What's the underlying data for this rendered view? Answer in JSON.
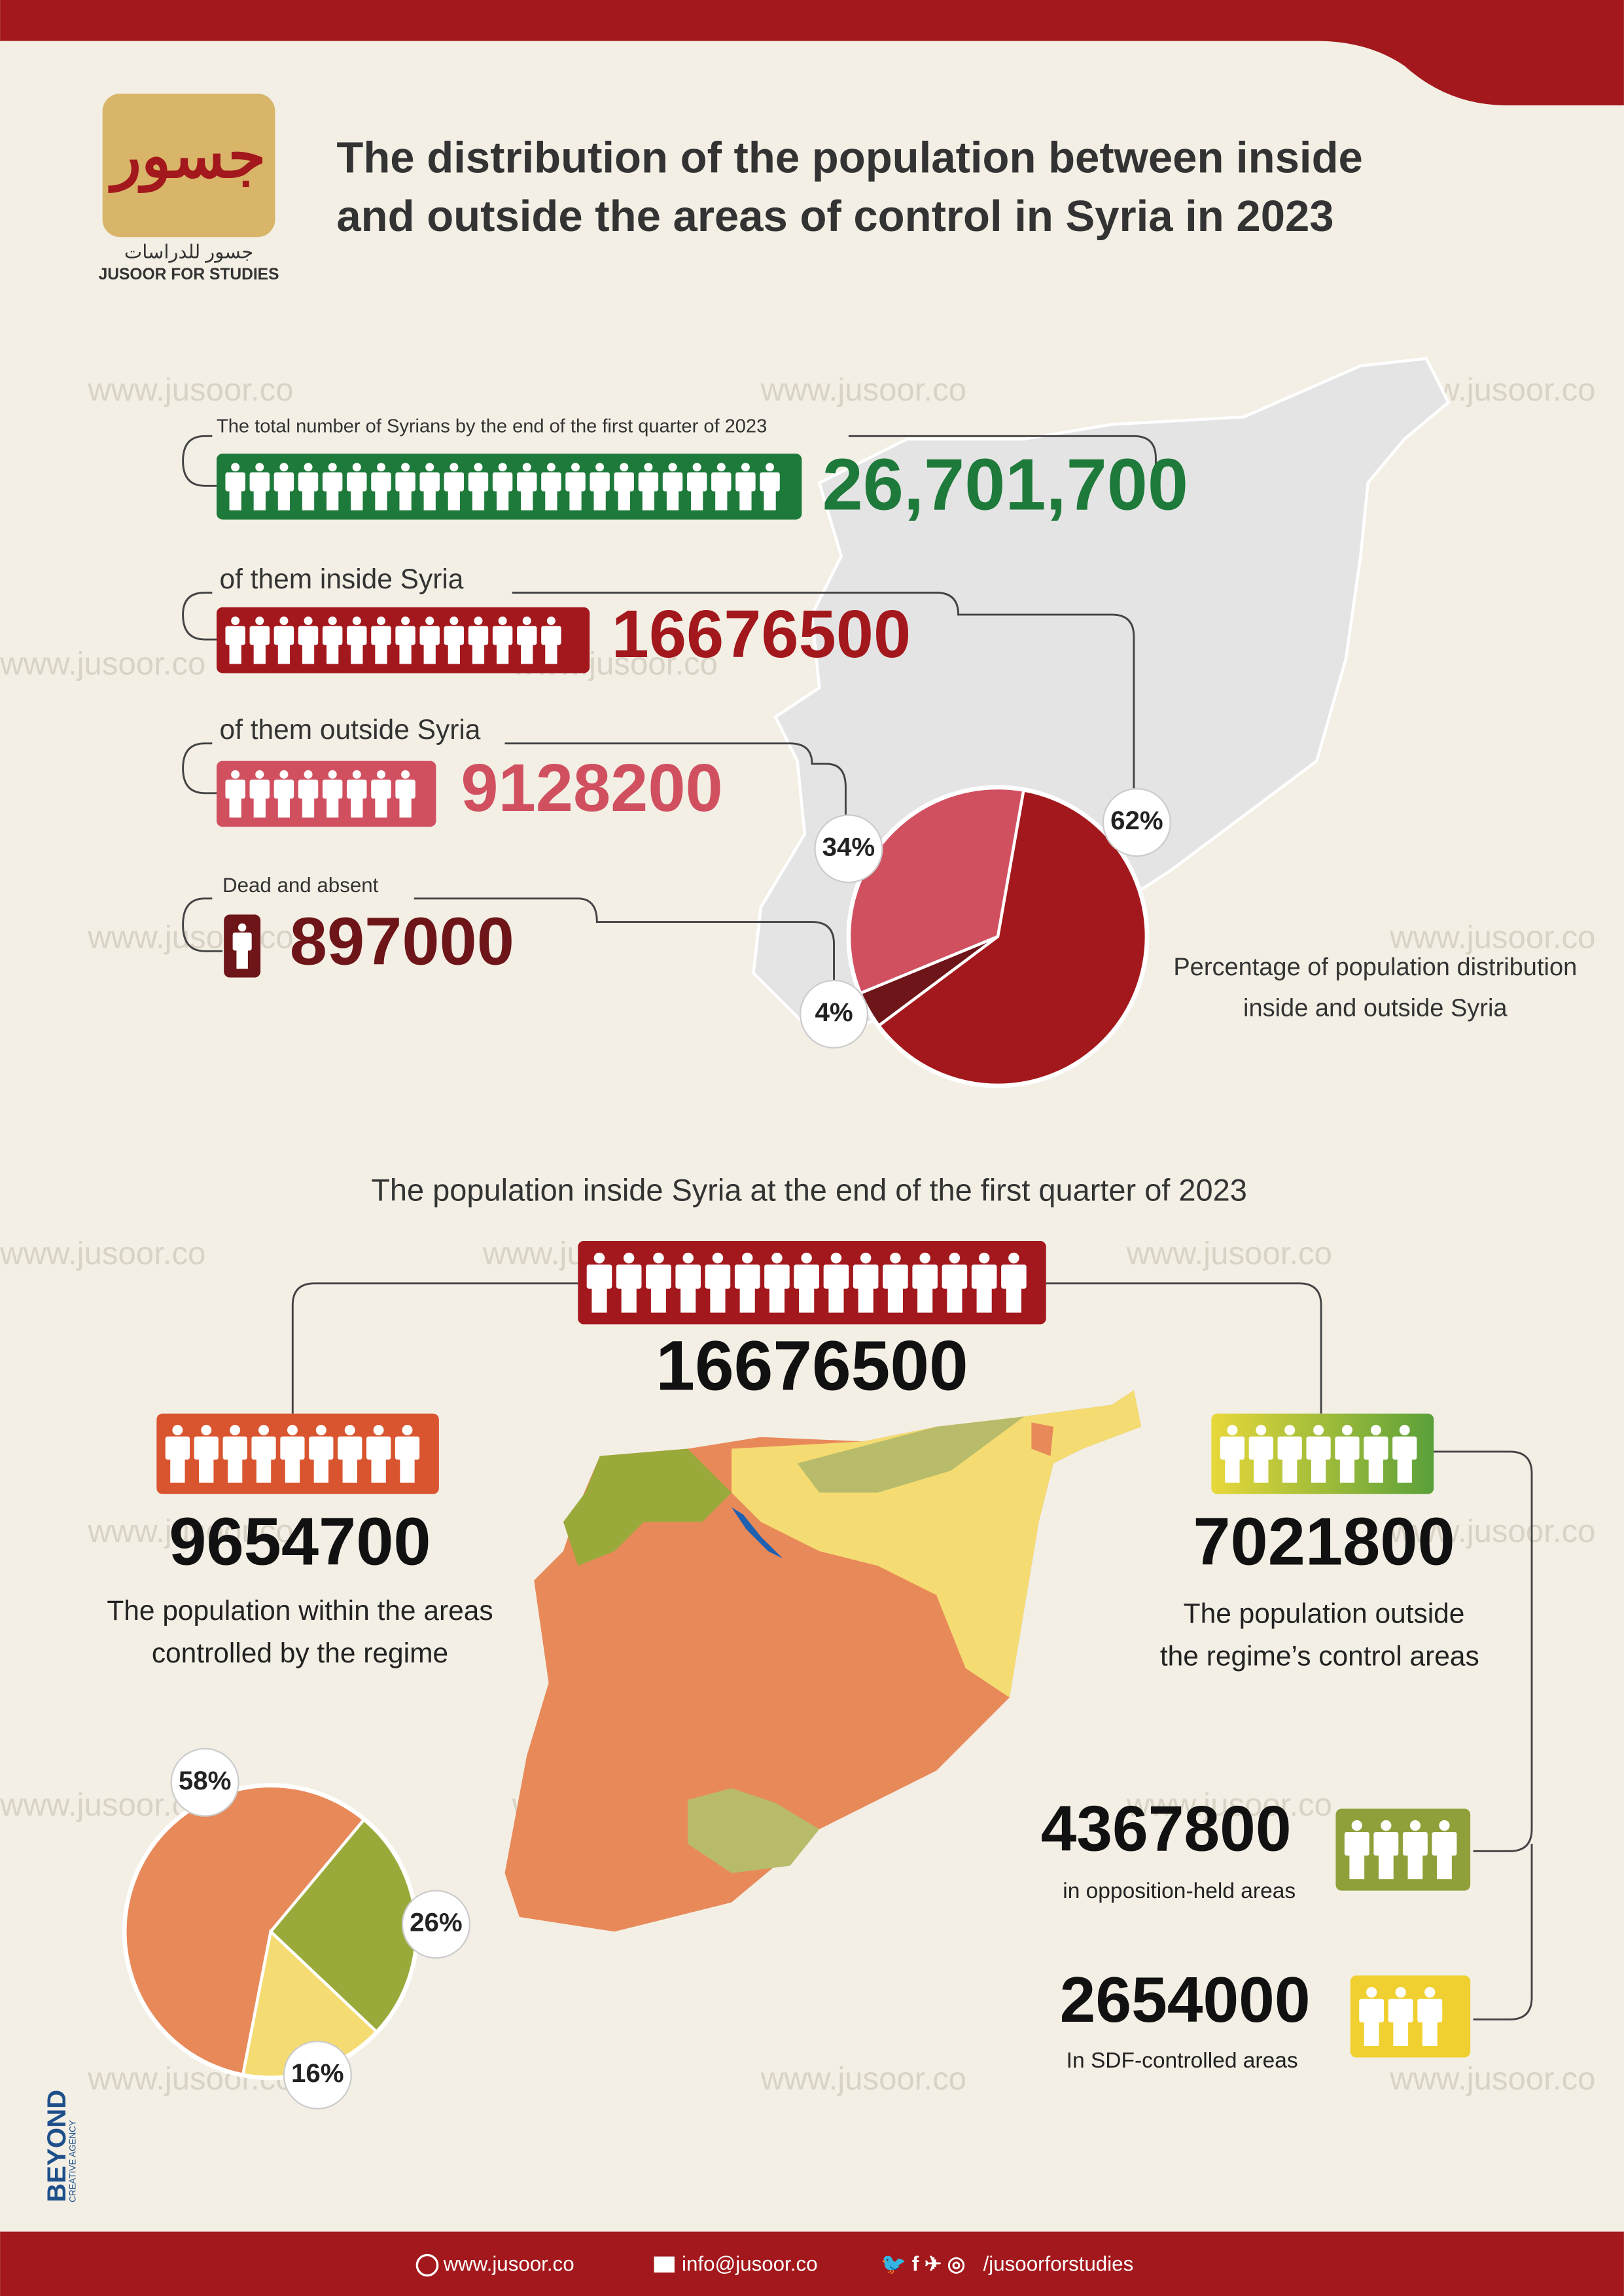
{
  "header": {
    "logo_ar": "جسور للدراسات",
    "logo_en": "JUSOOR FOR STUDIES",
    "title": [
      "The distribution of the population between inside",
      "and outside the areas of control in Syria in 2023"
    ]
  },
  "watermark": "www.jusoor.co",
  "top_stats": [
    {
      "label": "The total number of Syrians by the end of the first quarter of 2023",
      "value": "26,701,700",
      "color": "#1e7a3a"
    },
    {
      "label": "of them inside Syria",
      "value": "16676500",
      "color": "#a3181c"
    },
    {
      "label": "of them outside Syria",
      "value": "9128200",
      "color": "#d05060"
    },
    {
      "label": "Dead and absent",
      "value": "897000",
      "color": "#6d1518"
    }
  ],
  "chart_data": [
    {
      "type": "pie",
      "title": [
        "Percentage of population distribution",
        "inside and outside Syria"
      ],
      "values": [
        62,
        4,
        34
      ],
      "value_labels": [
        "62%",
        "4%",
        "34%"
      ],
      "colors": [
        "#a3181c",
        "#6d1518",
        "#d05060"
      ]
    },
    {
      "type": "pie",
      "values": [
        58,
        26,
        16
      ],
      "value_labels": [
        "58%",
        "26%",
        "16%"
      ],
      "colors": [
        "#e8895a",
        "#9aaa3a",
        "#f4dc72"
      ]
    }
  ],
  "inside_section": {
    "title": "The population inside Syria at the end of the first quarter of 2023",
    "total": "16676500",
    "regime": {
      "value": "9654700",
      "text": [
        "The population within the areas",
        "controlled by the regime"
      ]
    },
    "outside": {
      "value": "7021800",
      "text": [
        "The population outside",
        "the regime’s control areas"
      ]
    },
    "opposition": {
      "value": "4367800",
      "text": "in opposition-held areas"
    },
    "sdf": {
      "value": "2654000",
      "text": "In SDF-controlled areas"
    }
  },
  "side": {
    "agency": "BEYOND",
    "agency_sub": "CREATIVE AGENCY"
  },
  "footer": {
    "website": "www.jusoor.co",
    "email": "info@jusoor.co",
    "social": "/jusoorforstudies"
  }
}
